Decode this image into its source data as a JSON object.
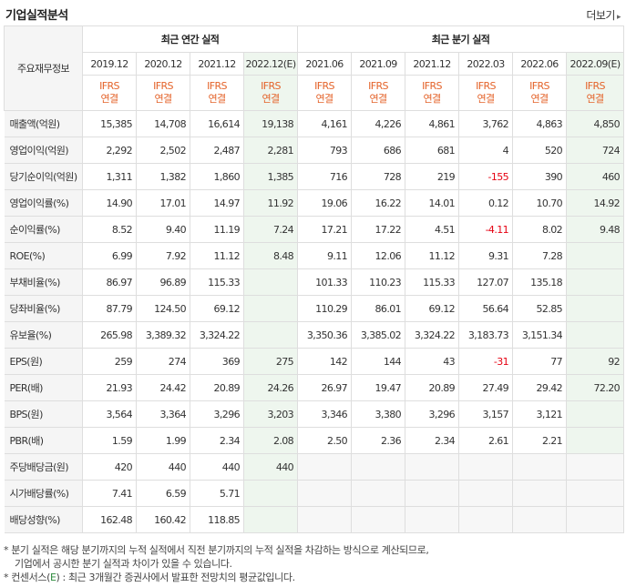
{
  "header": {
    "title": "기업실적분석",
    "more_label": "더보기"
  },
  "table": {
    "corner_label": "주요재무정보",
    "annual_group_label": "최근 연간 실적",
    "quarter_group_label": "최근 분기 실적",
    "annual_periods": [
      "2019.12",
      "2020.12",
      "2021.12",
      "2022.12(E)"
    ],
    "quarter_periods": [
      "2021.06",
      "2021.09",
      "2021.12",
      "2022.03",
      "2022.06",
      "2022.09(E)"
    ],
    "ifrs_top": "IFRS",
    "ifrs_bottom": "연결",
    "rows": [
      {
        "label": "매출액(억원)",
        "annual": [
          "15,385",
          "14,708",
          "16,614",
          "19,138"
        ],
        "quarter": [
          "4,161",
          "4,226",
          "4,861",
          "3,762",
          "4,863",
          "4,850"
        ]
      },
      {
        "label": "영업이익(억원)",
        "annual": [
          "2,292",
          "2,502",
          "2,487",
          "2,281"
        ],
        "quarter": [
          "793",
          "686",
          "681",
          "4",
          "520",
          "724"
        ]
      },
      {
        "label": "당기순이익(억원)",
        "annual": [
          "1,311",
          "1,382",
          "1,860",
          "1,385"
        ],
        "quarter": [
          "716",
          "728",
          "219",
          "-155",
          "390",
          "460"
        ]
      },
      {
        "label": "영업이익률(%)",
        "annual": [
          "14.90",
          "17.01",
          "14.97",
          "11.92"
        ],
        "quarter": [
          "19.06",
          "16.22",
          "14.01",
          "0.12",
          "10.70",
          "14.92"
        ]
      },
      {
        "label": "순이익률(%)",
        "annual": [
          "8.52",
          "9.40",
          "11.19",
          "7.24"
        ],
        "quarter": [
          "17.21",
          "17.22",
          "4.51",
          "-4.11",
          "8.02",
          "9.48"
        ]
      },
      {
        "label": "ROE(%)",
        "annual": [
          "6.99",
          "7.92",
          "11.12",
          "8.48"
        ],
        "quarter": [
          "9.11",
          "12.06",
          "11.12",
          "9.31",
          "7.28",
          ""
        ]
      },
      {
        "label": "부채비율(%)",
        "annual": [
          "86.97",
          "96.89",
          "115.33",
          ""
        ],
        "quarter": [
          "101.33",
          "110.23",
          "115.33",
          "127.07",
          "135.18",
          ""
        ]
      },
      {
        "label": "당좌비율(%)",
        "annual": [
          "87.79",
          "124.50",
          "69.12",
          ""
        ],
        "quarter": [
          "110.29",
          "86.01",
          "69.12",
          "56.64",
          "52.85",
          ""
        ]
      },
      {
        "label": "유보율(%)",
        "annual": [
          "265.98",
          "3,389.32",
          "3,324.22",
          ""
        ],
        "quarter": [
          "3,350.36",
          "3,385.02",
          "3,324.22",
          "3,183.73",
          "3,151.34",
          ""
        ]
      },
      {
        "label": "EPS(원)",
        "annual": [
          "259",
          "274",
          "369",
          "275"
        ],
        "quarter": [
          "142",
          "144",
          "43",
          "-31",
          "77",
          "92"
        ]
      },
      {
        "label": "PER(배)",
        "annual": [
          "21.93",
          "24.42",
          "20.89",
          "24.26"
        ],
        "quarter": [
          "26.97",
          "19.47",
          "20.89",
          "27.49",
          "29.42",
          "72.20"
        ]
      },
      {
        "label": "BPS(원)",
        "annual": [
          "3,564",
          "3,364",
          "3,296",
          "3,203"
        ],
        "quarter": [
          "3,346",
          "3,380",
          "3,296",
          "3,157",
          "3,121",
          ""
        ]
      },
      {
        "label": "PBR(배)",
        "annual": [
          "1.59",
          "1.99",
          "2.34",
          "2.08"
        ],
        "quarter": [
          "2.50",
          "2.36",
          "2.34",
          "2.61",
          "2.21",
          ""
        ]
      },
      {
        "label": "주당배당금(원)",
        "annual": [
          "420",
          "440",
          "440",
          "440"
        ],
        "quarter": [
          "",
          "",
          "",
          "",
          "",
          ""
        ]
      },
      {
        "label": "시가배당률(%)",
        "annual": [
          "7.41",
          "6.59",
          "5.71",
          ""
        ],
        "quarter": [
          "",
          "",
          "",
          "",
          "",
          ""
        ]
      },
      {
        "label": "배당성향(%)",
        "annual": [
          "162.48",
          "160.42",
          "118.85",
          ""
        ],
        "quarter": [
          "",
          "",
          "",
          "",
          "",
          ""
        ]
      }
    ]
  },
  "notes": {
    "line1": "분기 실적은 해당 분기까지의 누적 실적에서 직전 분기까지의 누적 실적을 차감하는 방식으로 계산되므로,",
    "line2": "기업에서 공시한 분기 실적과 차이가 있을 수 있습니다.",
    "line3_prefix": "컨센서스(",
    "line3_e": "E",
    "line3_suffix": ") : 최근 3개월간 증권사에서 발표한 전망치의 평균값입니다."
  },
  "colors": {
    "ifrs": "#e4632a",
    "negative": "#e60012",
    "estimate_bg": "#eef6ee",
    "consensus_e": "#2a8a3a"
  }
}
